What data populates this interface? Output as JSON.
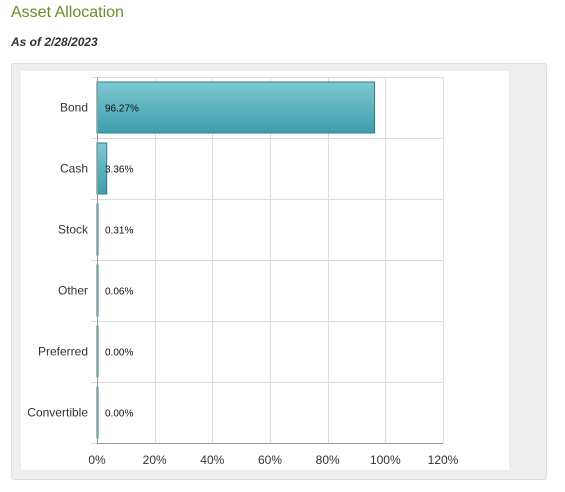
{
  "page": {
    "title": "Asset Allocation",
    "subtitle": "As of 2/28/2023"
  },
  "colors": {
    "title": "#6b8e23",
    "bar_top": "#7ec8d3",
    "bar_bottom": "#3d9eaa",
    "bar_stroke": "#2e7f8a",
    "grid": "#dcdcdc"
  },
  "chart_data": {
    "type": "bar",
    "orientation": "horizontal",
    "categories": [
      "Bond",
      "Cash",
      "Stock",
      "Other",
      "Preferred",
      "Convertible"
    ],
    "values": [
      96.27,
      3.36,
      0.31,
      0.06,
      0.0,
      0.0
    ],
    "value_labels": [
      "96.27%",
      "3.36%",
      "0.31%",
      "0.06%",
      "0.00%",
      "0.00%"
    ],
    "xlim": [
      0,
      120
    ],
    "xticks": [
      0,
      20,
      40,
      60,
      80,
      100,
      120
    ],
    "xtick_labels": [
      "0%",
      "20%",
      "40%",
      "60%",
      "80%",
      "100%",
      "120%"
    ],
    "grid": true
  }
}
